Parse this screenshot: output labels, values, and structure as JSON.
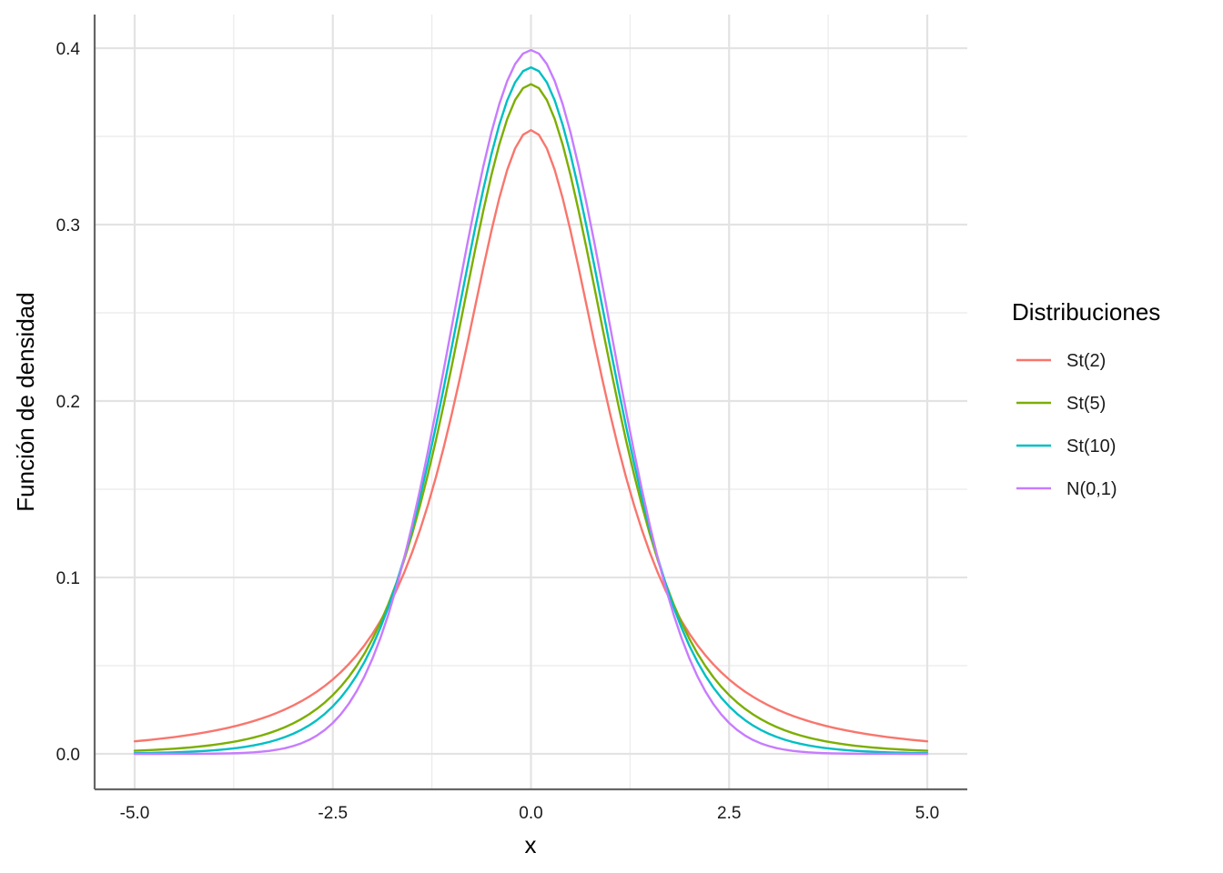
{
  "chart_data": {
    "type": "line",
    "title": "",
    "xlabel": "x",
    "ylabel": "Función de densidad",
    "xlim": [
      -5.0,
      5.0
    ],
    "ylim": [
      0.0,
      0.4
    ],
    "x_ticks": [
      "-5.0",
      "-2.5",
      "0.0",
      "2.5",
      "5.0"
    ],
    "y_ticks": [
      "0.0",
      "0.1",
      "0.2",
      "0.3",
      "0.4"
    ],
    "grid": true,
    "legend": {
      "title": "Distribuciones",
      "position": "right"
    },
    "x_step": 0.1,
    "series": [
      {
        "name": "St(2)",
        "color": "#F8766D",
        "distribution": "t",
        "df": 2
      },
      {
        "name": "St(5)",
        "color": "#7CAE00",
        "distribution": "t",
        "df": 5
      },
      {
        "name": "St(10)",
        "color": "#00BFC4",
        "distribution": "t",
        "df": 10
      },
      {
        "name": "N(0,1)",
        "color": "#C77CFF",
        "distribution": "normal",
        "df": null
      }
    ]
  }
}
